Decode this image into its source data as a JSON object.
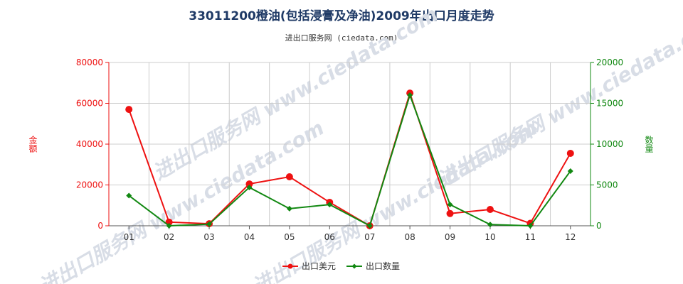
{
  "title": "33011200橙油(包括浸膏及净油)2009年出口月度走势",
  "subtitle": "进出口服务网 (ciedata.com)",
  "watermark": "进出口服务网 www.ciedata.com",
  "colors": {
    "usd": "#ee1111",
    "qty": "#118811",
    "grid": "#cccccc",
    "axis": "#888888"
  },
  "chart_data": {
    "type": "line",
    "title": "33011200橙油(包括浸膏及净油)2009年出口月度走势",
    "categories": [
      "01",
      "02",
      "03",
      "04",
      "05",
      "06",
      "07",
      "08",
      "09",
      "10",
      "11",
      "12"
    ],
    "y_left": {
      "label": "金额",
      "ylim": [
        0,
        80000
      ],
      "ticks": [
        "0",
        "20000",
        "40000",
        "60000",
        "80000"
      ]
    },
    "y_right": {
      "label": "数量",
      "ylim": [
        0,
        20000
      ],
      "ticks": [
        "0",
        "5000",
        "10000",
        "15000",
        "20000"
      ]
    },
    "grid": true,
    "legend_position": "bottom-center",
    "series": [
      {
        "name": "出口美元",
        "axis": "left",
        "color": "#ee1111",
        "values": [
          57000,
          1800,
          1000,
          20500,
          24000,
          11500,
          0,
          65000,
          6000,
          8000,
          1200,
          35500
        ]
      },
      {
        "name": "出口数量",
        "axis": "right",
        "color": "#118811",
        "values": [
          3700,
          0,
          200,
          4700,
          2100,
          2600,
          0,
          16000,
          2600,
          150,
          0,
          6700
        ]
      }
    ]
  }
}
